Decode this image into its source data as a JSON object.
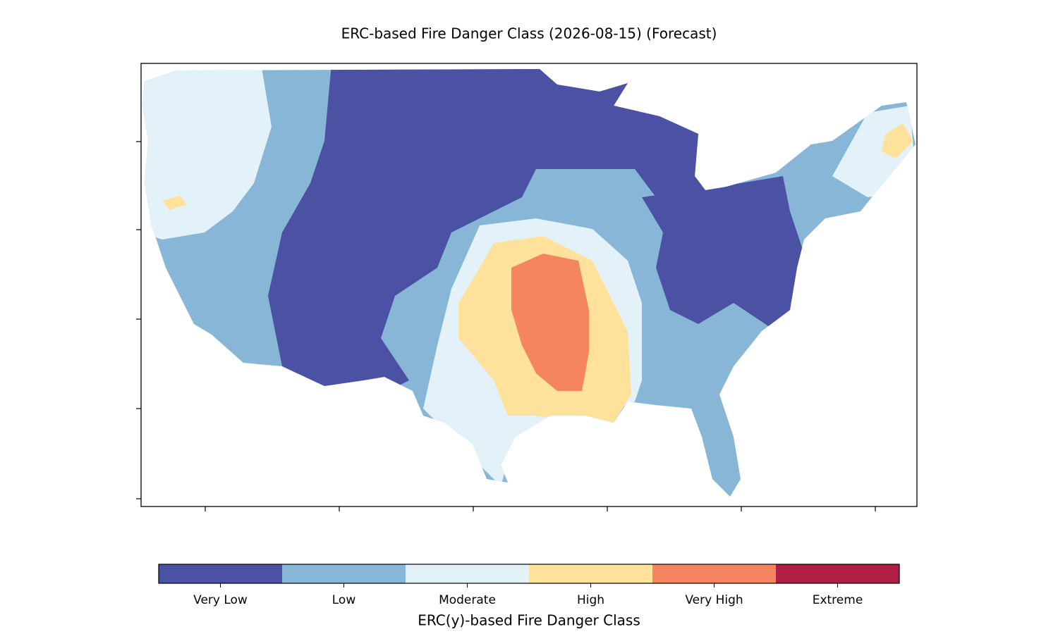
{
  "title": "ERC-based Fire Danger Class (2026-08-15) (Forecast)",
  "colorbar": {
    "label": "ERC(y)-based Fire Danger Class",
    "classes": [
      {
        "name": "Very Low",
        "color": "#4b51a3"
      },
      {
        "name": "Low",
        "color": "#87b6d6"
      },
      {
        "name": "Moderate",
        "color": "#e3f2f8"
      },
      {
        "name": "High",
        "color": "#fee29b"
      },
      {
        "name": "Very High",
        "color": "#f4855e"
      },
      {
        "name": "Extreme",
        "color": "#b01e45"
      }
    ]
  }
}
